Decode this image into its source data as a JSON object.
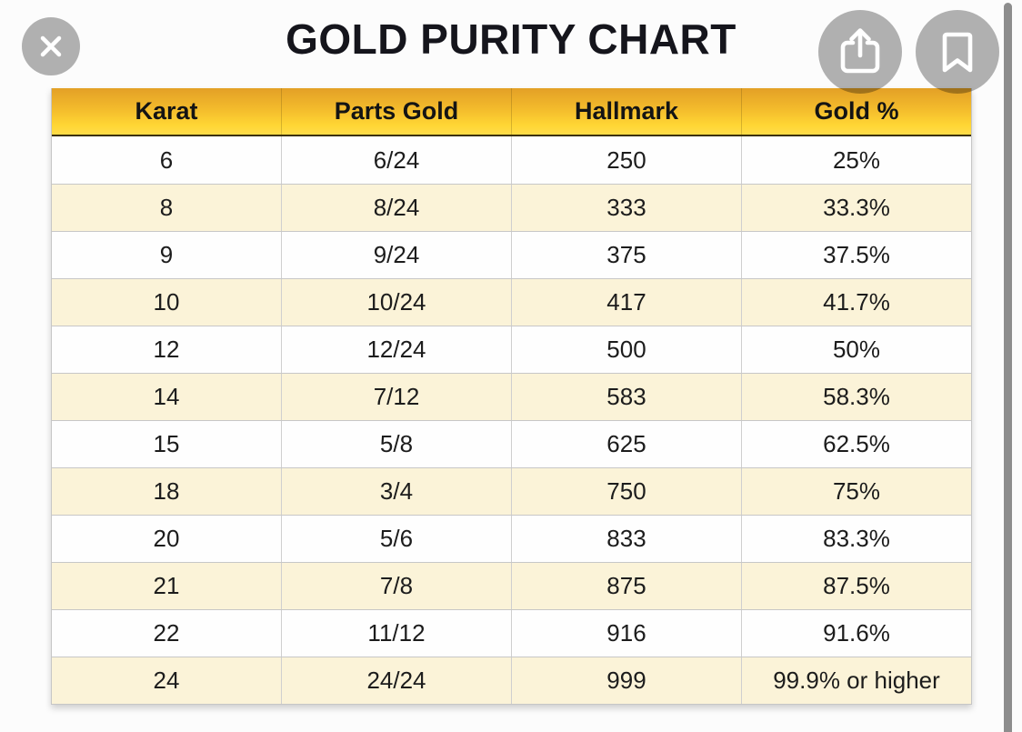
{
  "title": "GOLD PURITY CHART",
  "toolbar": {
    "close_icon": "close-x",
    "share_icon": "ios-share",
    "bookmark_icon": "bookmark-outline"
  },
  "scrollbar": {
    "visible": true,
    "orientation": "vertical"
  },
  "colors": {
    "header_gold_top": "#e3a026",
    "header_gold_bottom": "#ffdc49",
    "header_border_dark": "#3b3100",
    "row_cream": "#fbf3d8",
    "row_white": "#fefefe",
    "grid_line": "#c7c7c7",
    "button_gray": "#b2b2b2",
    "title_text": "#15151c",
    "scrollbar_gray": "#8d8d8d"
  },
  "chart_data": {
    "type": "table",
    "title": "GOLD PURITY CHART",
    "columns": [
      "Karat",
      "Parts Gold",
      "Hallmark",
      "Gold %"
    ],
    "rows": [
      [
        "6",
        "6/24",
        "250",
        "25%"
      ],
      [
        "8",
        "8/24",
        "333",
        "33.3%"
      ],
      [
        "9",
        "9/24",
        "375",
        "37.5%"
      ],
      [
        "10",
        "10/24",
        "417",
        "41.7%"
      ],
      [
        "12",
        "12/24",
        "500",
        "50%"
      ],
      [
        "14",
        "7/12",
        "583",
        "58.3%"
      ],
      [
        "15",
        "5/8",
        "625",
        "62.5%"
      ],
      [
        "18",
        "3/4",
        "750",
        "75%"
      ],
      [
        "20",
        "5/6",
        "833",
        "83.3%"
      ],
      [
        "21",
        "7/8",
        "875",
        "87.5%"
      ],
      [
        "22",
        "11/12",
        "916",
        "91.6%"
      ],
      [
        "24",
        "24/24",
        "999",
        "99.9% or higher"
      ]
    ],
    "layout": {
      "striped": true,
      "first_row_background": "white",
      "header_style": "gold-gradient"
    }
  }
}
